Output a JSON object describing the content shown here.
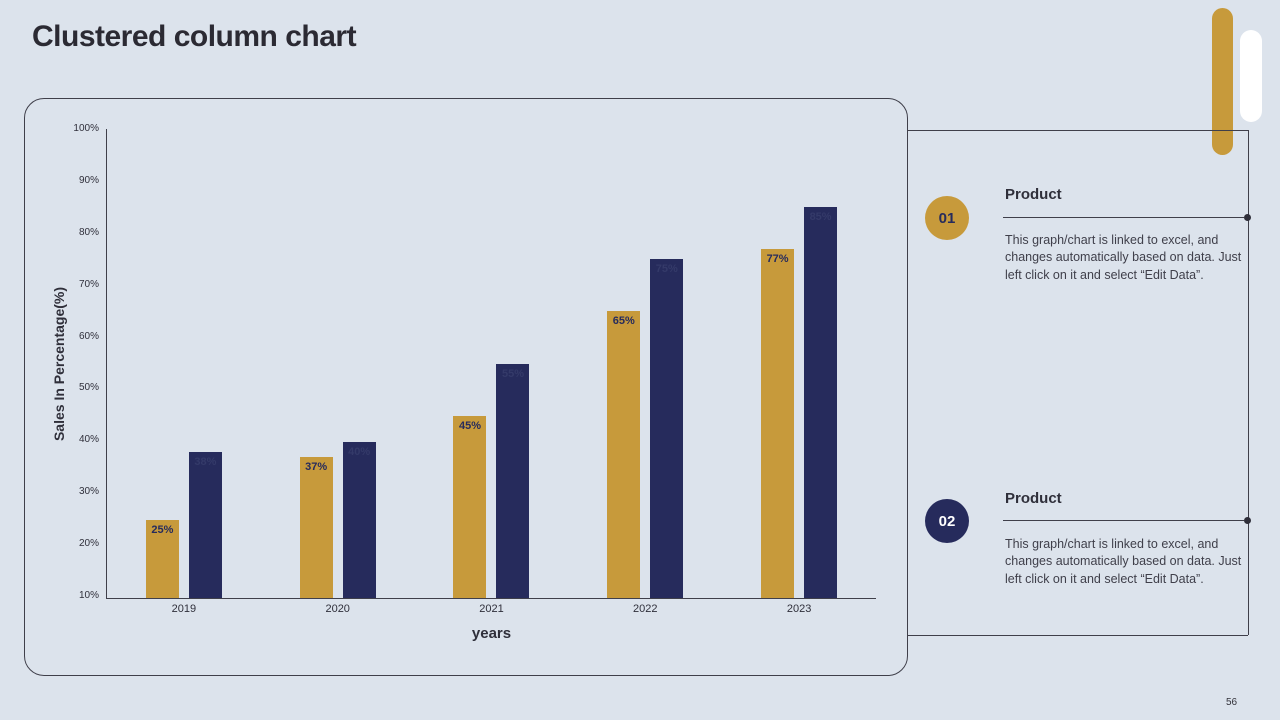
{
  "page": {
    "title": "Clustered column chart",
    "page_number": "56"
  },
  "colors": {
    "gold": "#C79A3B",
    "navy": "#262B5C",
    "background": "#DCE3EC",
    "line": "#3F3F4A"
  },
  "chart_data": {
    "type": "bar",
    "title": "",
    "categories": [
      "2019",
      "2020",
      "2021",
      "2022",
      "2023"
    ],
    "series": [
      {
        "name": "Product 01",
        "color": "#C79A3B",
        "label_color": "#262B5C",
        "values": [
          25,
          37,
          45,
          65,
          77
        ]
      },
      {
        "name": "Product 02",
        "color": "#262B5C",
        "label_color": "#343A69",
        "values": [
          38,
          40,
          55,
          75,
          85
        ]
      }
    ],
    "xlabel": "years",
    "ylabel": "Sales In Percentage(%)",
    "ylim": [
      10,
      100
    ],
    "yticks": [
      "100%",
      "90%",
      "80%",
      "70%",
      "60%",
      "50%",
      "40%",
      "30%",
      "20%",
      "10%"
    ],
    "grid": false,
    "legend_position": "none"
  },
  "products": [
    {
      "number": "01",
      "heading": "Product",
      "body": "This graph/chart is linked to excel, and changes automatically based on data. Just left click on it and select “Edit Data”."
    },
    {
      "number": "02",
      "heading": "Product",
      "body": "This graph/chart is linked to excel, and changes automatically based on data. Just left click on it and select “Edit Data”."
    }
  ]
}
